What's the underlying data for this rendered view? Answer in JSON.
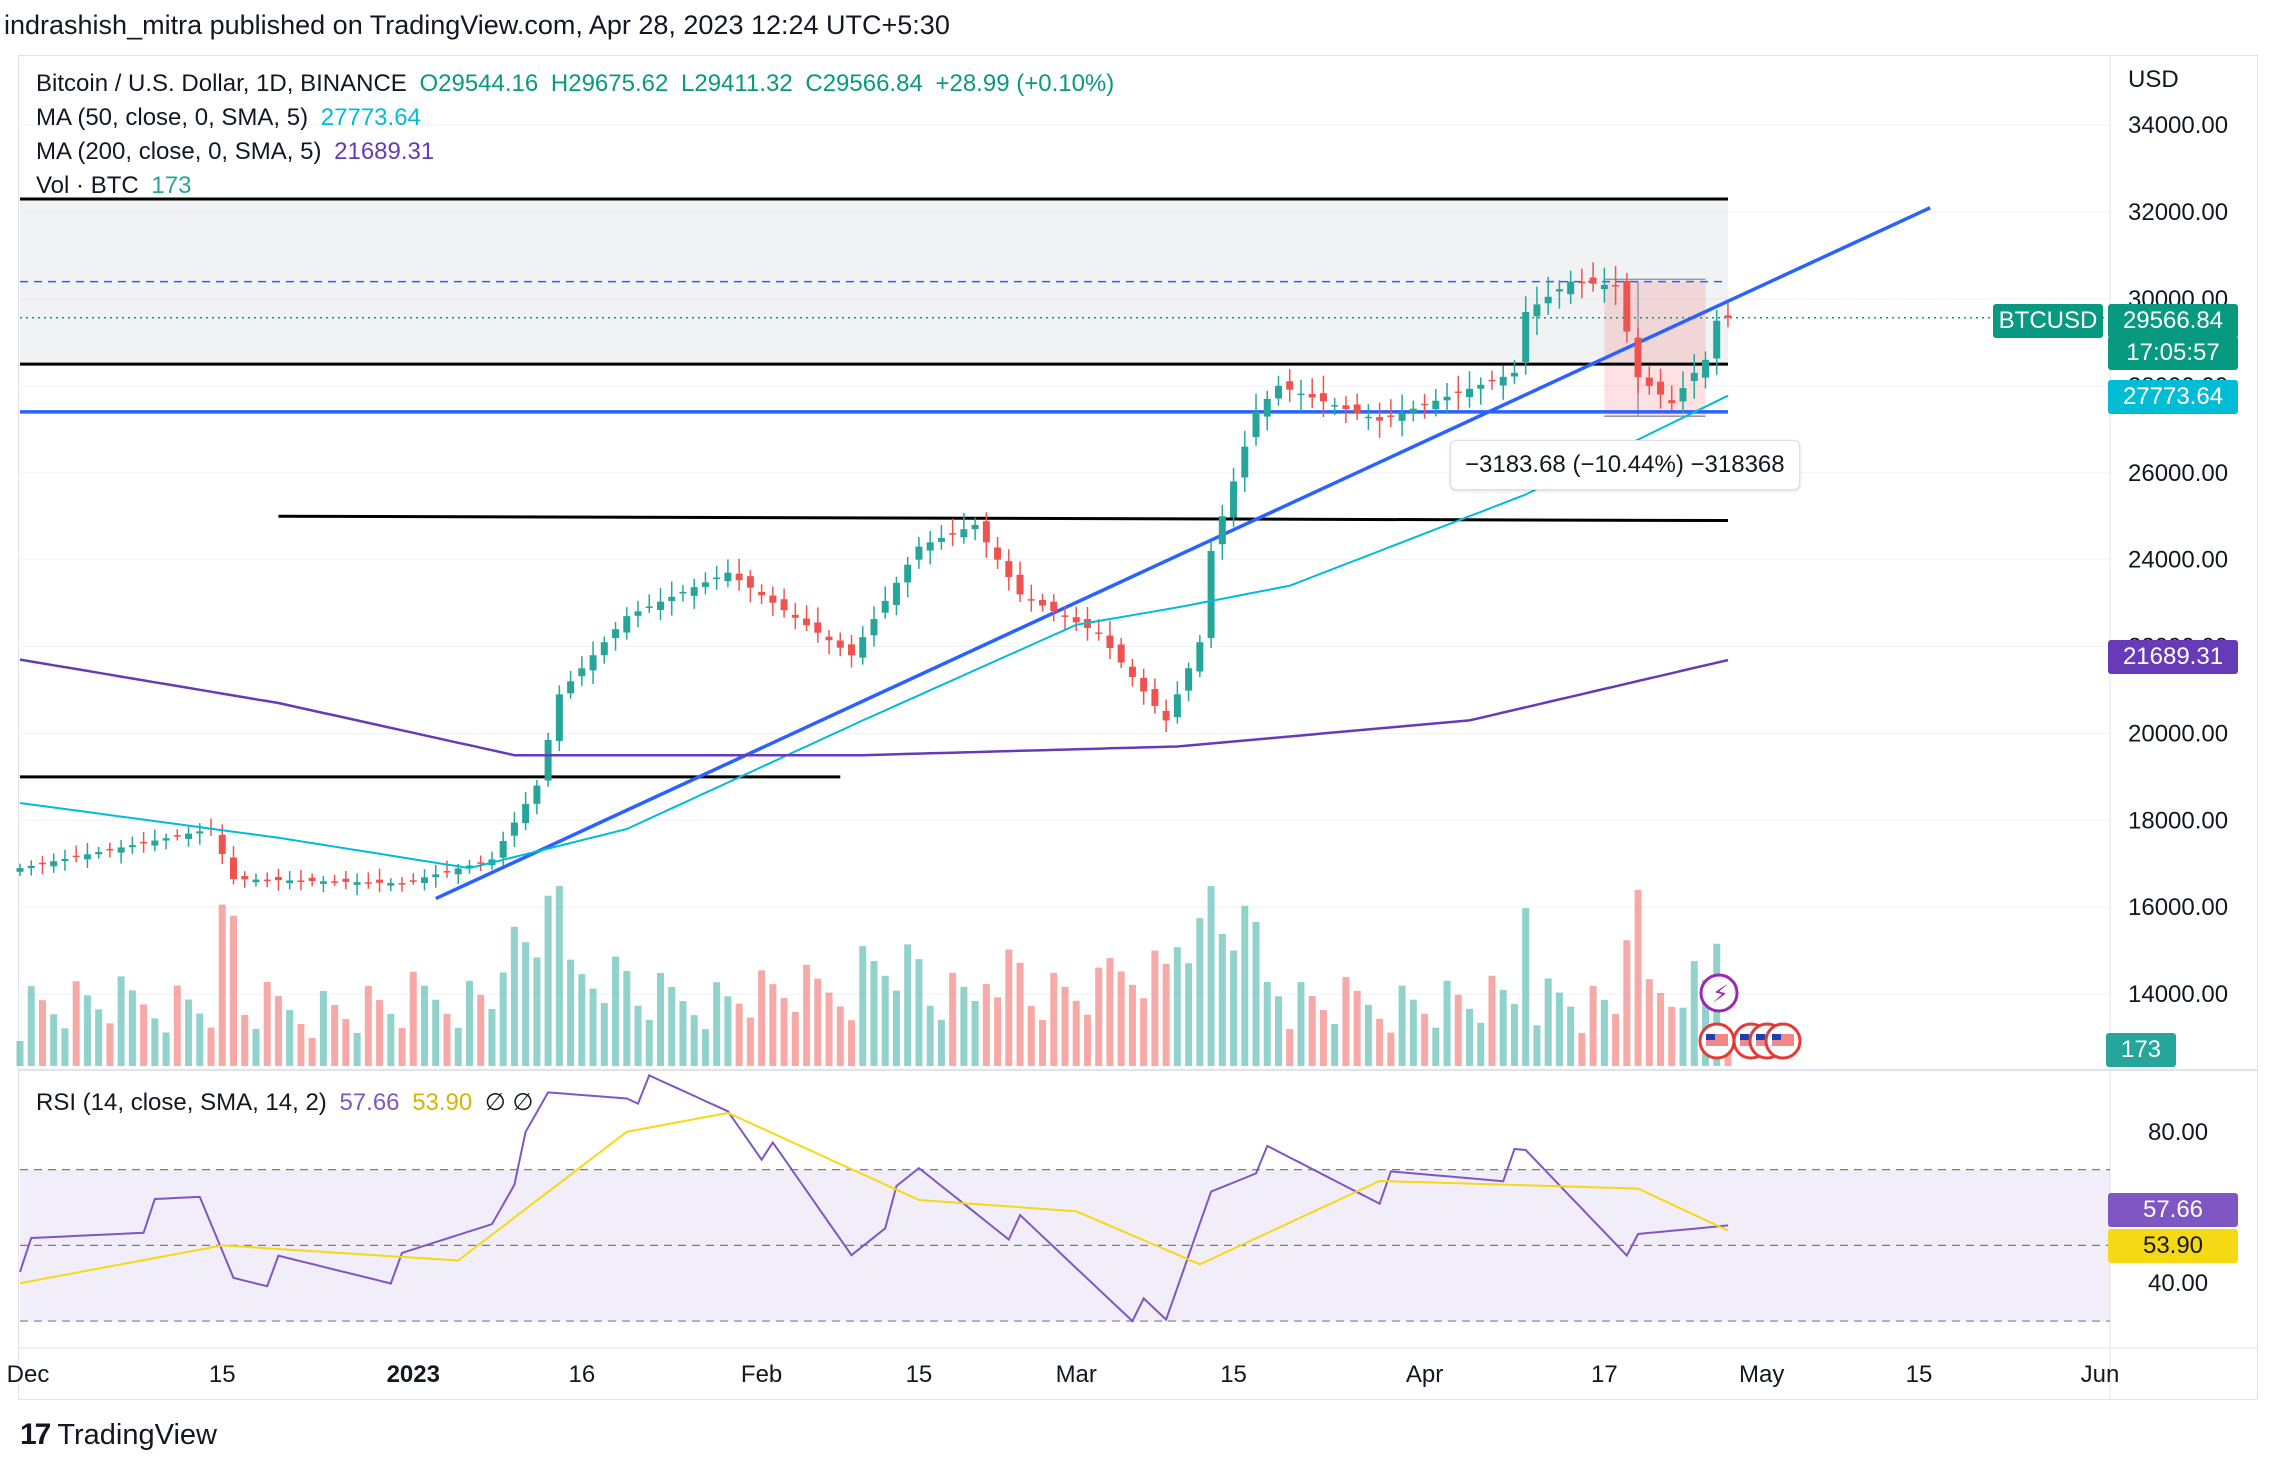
{
  "header": {
    "published_text": "indrashish_mitra published on TradingView.com, Apr 28, 2023 12:24 UTC+5:30"
  },
  "legend": {
    "symbol": "Bitcoin / U.S. Dollar, 1D, BINANCE",
    "open": "O29544.16",
    "high": "H29675.62",
    "low": "L29411.32",
    "close": "C29566.84",
    "change": "+28.99 (+0.10%)",
    "ma50_label": "MA (50, close, 0, SMA, 5)",
    "ma50_value": "27773.64",
    "ma200_label": "MA (200, close, 0, SMA, 5)",
    "ma200_value": "21689.31",
    "vol_label": "Vol · BTC",
    "vol_value": "173"
  },
  "rsi_legend": {
    "label": "RSI (14, close, SMA, 14, 2)",
    "rsi_value": "57.66",
    "sma_value": "53.90",
    "extra": "∅ ∅"
  },
  "price_axis": {
    "currency": "USD",
    "ticks": [
      "34000.00",
      "32000.00",
      "30000.00",
      "28000.00",
      "26000.00",
      "24000.00",
      "22000.00",
      "20000.00",
      "18000.00",
      "16000.00",
      "14000.00"
    ],
    "tag_symbol": "BTCUSD",
    "tag_price": "29566.84",
    "tag_countdown": "17:05:57",
    "tag_ma50": "27773.64",
    "tag_ma200": "21689.31",
    "tag_volume": "173"
  },
  "rsi_axis": {
    "ticks": [
      "80.00",
      "40.00"
    ],
    "tag_rsi": "57.66",
    "tag_sma": "53.90"
  },
  "time_axis": {
    "labels": [
      "Dec",
      "15",
      "2023",
      "16",
      "Feb",
      "15",
      "Mar",
      "15",
      "Apr",
      "17",
      "May",
      "15",
      "Jun"
    ]
  },
  "measure": {
    "text": "−3183.68 (−10.44%) −318368"
  },
  "footer": {
    "logo_text": "TradingView"
  },
  "colors": {
    "up": "#26a69a",
    "down": "#ef5350",
    "trendline": "#2962ff",
    "ma50": "#00bcd4",
    "ma200": "#673ab7",
    "rsi": "#7e57c2",
    "rsi_sma": "#f5d915"
  },
  "chart_data": {
    "type": "candlestick",
    "title": "Bitcoin / U.S. Dollar, 1D, BINANCE",
    "ylabel": "USD",
    "ylim": [
      12300,
      35500
    ],
    "x_range": [
      "2022-11-27",
      "2023-06-01"
    ],
    "candles_anchor": [
      {
        "date": "2022-11-27",
        "close": 16900
      },
      {
        "date": "2022-12-14",
        "close": 17800
      },
      {
        "date": "2022-12-16",
        "close": 16650
      },
      {
        "date": "2022-12-31",
        "close": 16550
      },
      {
        "date": "2023-01-08",
        "close": 17100
      },
      {
        "date": "2023-01-12",
        "close": 18800
      },
      {
        "date": "2023-01-14",
        "close": 20900
      },
      {
        "date": "2023-01-20",
        "close": 22700
      },
      {
        "date": "2023-01-29",
        "close": 23700
      },
      {
        "date": "2023-02-09",
        "close": 21800
      },
      {
        "date": "2023-02-15",
        "close": 24300
      },
      {
        "date": "2023-02-20",
        "close": 24800
      },
      {
        "date": "2023-02-24",
        "close": 23200
      },
      {
        "date": "2023-03-03",
        "close": 22300
      },
      {
        "date": "2023-03-09",
        "close": 20300
      },
      {
        "date": "2023-03-12",
        "close": 22100
      },
      {
        "date": "2023-03-13",
        "close": 24200
      },
      {
        "date": "2023-03-17",
        "close": 27400
      },
      {
        "date": "2023-03-19",
        "close": 28000
      },
      {
        "date": "2023-03-28",
        "close": 27200
      },
      {
        "date": "2023-04-09",
        "close": 28300
      },
      {
        "date": "2023-04-10",
        "close": 29700
      },
      {
        "date": "2023-04-14",
        "close": 30400
      },
      {
        "date": "2023-04-18",
        "close": 30300
      },
      {
        "date": "2023-04-20",
        "close": 28200
      },
      {
        "date": "2023-04-23",
        "close": 27600
      },
      {
        "date": "2023-04-25",
        "close": 28300
      },
      {
        "date": "2023-04-26",
        "close": 28600
      },
      {
        "date": "2023-04-27",
        "close": 29500
      },
      {
        "date": "2023-04-28",
        "close": 29566.84
      }
    ],
    "ma50_anchor": [
      {
        "date": "2022-11-27",
        "value": 18400
      },
      {
        "date": "2022-12-20",
        "value": 17600
      },
      {
        "date": "2023-01-06",
        "value": 16900
      },
      {
        "date": "2023-01-20",
        "value": 17800
      },
      {
        "date": "2023-02-10",
        "value": 20300
      },
      {
        "date": "2023-03-01",
        "value": 22500
      },
      {
        "date": "2023-03-10",
        "value": 22900
      },
      {
        "date": "2023-03-20",
        "value": 23400
      },
      {
        "date": "2023-04-10",
        "value": 25500
      },
      {
        "date": "2023-04-28",
        "value": 27773.64
      }
    ],
    "ma200_anchor": [
      {
        "date": "2022-11-27",
        "value": 21700
      },
      {
        "date": "2022-12-20",
        "value": 20700
      },
      {
        "date": "2023-01-10",
        "value": 19500
      },
      {
        "date": "2023-02-10",
        "value": 19500
      },
      {
        "date": "2023-03-10",
        "value": 19700
      },
      {
        "date": "2023-04-05",
        "value": 20300
      },
      {
        "date": "2023-04-28",
        "value": 21689.31
      }
    ],
    "horizontal_levels": [
      32300,
      30400,
      28500,
      27400,
      25000,
      19000
    ],
    "trendline": [
      {
        "date": "2023-01-03",
        "value": 16200
      },
      {
        "date": "2023-05-16",
        "value": 32100
      }
    ],
    "rsi": {
      "name": "RSI (14, close, SMA, 14, 2)",
      "ylim": [
        25,
        95
      ],
      "bands": [
        30,
        70
      ],
      "mid": 50,
      "rsi_anchor": [
        {
          "date": "2022-11-27",
          "value": 47
        },
        {
          "date": "2022-12-13",
          "value": 62
        },
        {
          "date": "2022-12-16",
          "value": 43
        },
        {
          "date": "2022-12-31",
          "value": 44
        },
        {
          "date": "2023-01-08",
          "value": 58
        },
        {
          "date": "2023-01-13",
          "value": 88
        },
        {
          "date": "2023-01-20",
          "value": 92
        },
        {
          "date": "2023-01-29",
          "value": 87
        },
        {
          "date": "2023-02-09",
          "value": 49
        },
        {
          "date": "2023-02-15",
          "value": 68
        },
        {
          "date": "2023-02-24",
          "value": 54
        },
        {
          "date": "2023-03-09",
          "value": 28
        },
        {
          "date": "2023-03-13",
          "value": 65
        },
        {
          "date": "2023-03-17",
          "value": 73
        },
        {
          "date": "2023-03-28",
          "value": 65
        },
        {
          "date": "2023-04-10",
          "value": 72
        },
        {
          "date": "2023-04-20",
          "value": 49
        },
        {
          "date": "2023-04-28",
          "value": 57.66
        }
      ],
      "sma_anchor": [
        {
          "date": "2022-11-27",
          "value": 40
        },
        {
          "date": "2022-12-15",
          "value": 50
        },
        {
          "date": "2023-01-05",
          "value": 46
        },
        {
          "date": "2023-01-20",
          "value": 80
        },
        {
          "date": "2023-01-29",
          "value": 85
        },
        {
          "date": "2023-02-15",
          "value": 62
        },
        {
          "date": "2023-03-01",
          "value": 59
        },
        {
          "date": "2023-03-12",
          "value": 45
        },
        {
          "date": "2023-03-28",
          "value": 67
        },
        {
          "date": "2023-04-20",
          "value": 65
        },
        {
          "date": "2023-04-28",
          "value": 53.9
        }
      ]
    }
  }
}
